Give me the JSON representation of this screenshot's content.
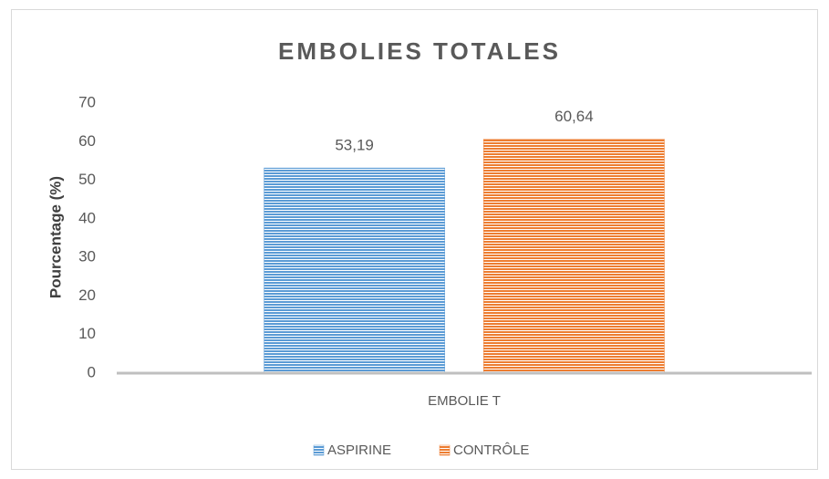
{
  "chart_data": {
    "type": "bar",
    "title": "EMBOLIES TOTALES",
    "ylabel": "Pourcentage (%)",
    "categories": [
      "EMBOLIE T"
    ],
    "series": [
      {
        "name": "ASPIRINE",
        "color": "#5b9bd5",
        "values": [
          53.19
        ],
        "value_labels": [
          "53,19"
        ]
      },
      {
        "name": "CONTRÔLE",
        "color": "#ed7d31",
        "values": [
          60.64
        ],
        "value_labels": [
          "60,64"
        ]
      }
    ],
    "ylim": [
      0,
      70
    ],
    "yticks": [
      0,
      10,
      20,
      30,
      40,
      50,
      60,
      70
    ],
    "grid": false,
    "legend": "bottom"
  }
}
